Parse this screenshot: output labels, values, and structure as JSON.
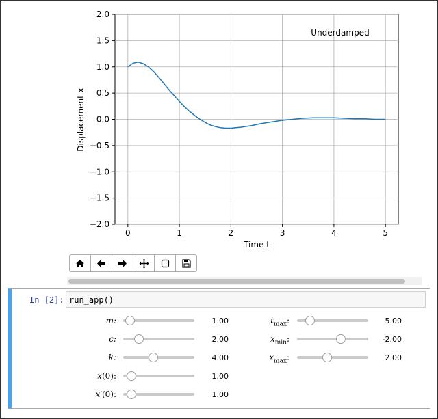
{
  "chart_data": {
    "type": "line",
    "xlabel": "Time t",
    "ylabel": "Displacement x",
    "annotation": "Underdamped",
    "xlim": [
      -0.25,
      5.25
    ],
    "ylim": [
      -2.0,
      2.0
    ],
    "x_ticks": [
      "0",
      "1",
      "2",
      "3",
      "4",
      "5"
    ],
    "y_ticks": [
      "2.0",
      "1.5",
      "1.0",
      "0.5",
      "0.0",
      "−0.5",
      "−1.0",
      "−1.5",
      "−2.0"
    ],
    "grid": true,
    "line_color": "#1f77b4",
    "x": [
      0,
      0.1,
      0.2,
      0.3,
      0.4,
      0.5,
      0.6,
      0.7,
      0.8,
      0.9,
      1.0,
      1.1,
      1.2,
      1.3,
      1.4,
      1.5,
      1.6,
      1.7,
      1.8,
      1.9,
      2.0,
      2.2,
      2.4,
      2.6,
      2.8,
      3.0,
      3.2,
      3.4,
      3.6,
      3.8,
      4.0,
      4.2,
      4.4,
      4.6,
      4.8,
      5.0
    ],
    "y": [
      1.0,
      1.07,
      1.09,
      1.06,
      1.0,
      0.91,
      0.8,
      0.68,
      0.56,
      0.45,
      0.34,
      0.24,
      0.15,
      0.07,
      0.0,
      -0.06,
      -0.11,
      -0.14,
      -0.16,
      -0.17,
      -0.17,
      -0.15,
      -0.12,
      -0.08,
      -0.05,
      -0.02,
      0.0,
      0.02,
      0.03,
      0.03,
      0.03,
      0.02,
      0.01,
      0.01,
      0.0,
      0.0
    ]
  },
  "toolbar": {
    "buttons": [
      {
        "name": "home-icon",
        "glyph": "🏠"
      },
      {
        "name": "back-arrow-icon",
        "glyph": "←"
      },
      {
        "name": "forward-arrow-icon",
        "glyph": "→"
      },
      {
        "name": "pan-icon",
        "glyph": "✥"
      },
      {
        "name": "zoom-rect-icon",
        "glyph": "▢"
      },
      {
        "name": "save-icon",
        "glyph": "💾"
      }
    ]
  },
  "cell": {
    "prompt": "In [2]:",
    "code": "run_app()"
  },
  "sliders": {
    "m": {
      "value": "1.00",
      "level": 0.1
    },
    "c": {
      "value": "2.00",
      "level": 0.22
    },
    "k": {
      "value": "4.00",
      "level": 0.42
    },
    "x0": {
      "value": "1.00",
      "level": 0.12
    },
    "v0": {
      "value": "1.00",
      "level": 0.12
    },
    "tmax": {
      "value": "5.00",
      "level": 0.18
    },
    "xmin": {
      "value": "-2.00",
      "level": 0.62
    },
    "xmax": {
      "value": "2.00",
      "level": 0.42
    }
  }
}
